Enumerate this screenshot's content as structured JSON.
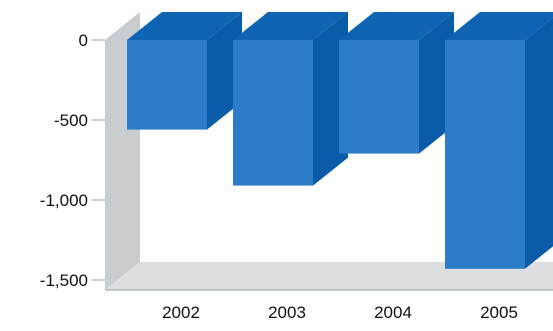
{
  "chart_data": {
    "type": "bar",
    "style": "3d",
    "categories": [
      "2002",
      "2003",
      "2004",
      "2005"
    ],
    "values": [
      -560,
      -910,
      -710,
      -1430
    ],
    "yticks": [
      {
        "value": 0,
        "label": "0"
      },
      {
        "value": -500,
        "label": "-500"
      },
      {
        "value": -1000,
        "label": "-1,000"
      },
      {
        "value": -1500,
        "label": "-1,500"
      }
    ],
    "ylim": [
      -1500,
      0
    ],
    "grid": false,
    "colors": {
      "bar_front": "#2d7cc8",
      "bar_side": "#0b5ca8",
      "bar_top": "#0e63b3",
      "wall": "#c9cdd0",
      "floor": "#dcdfe1"
    }
  }
}
